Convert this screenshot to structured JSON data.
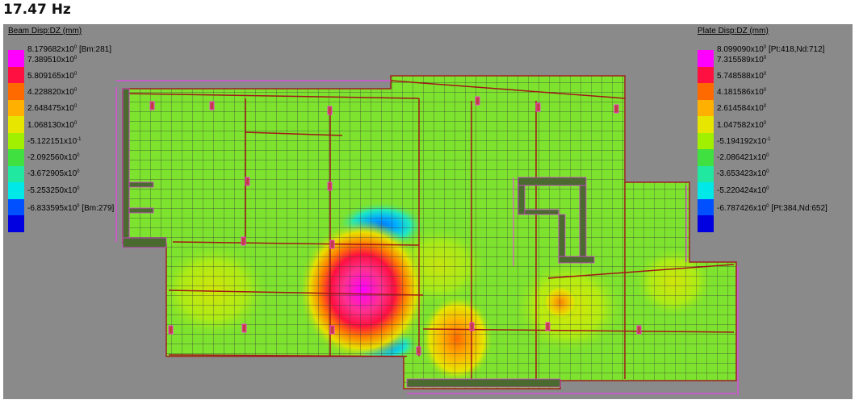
{
  "frequency_title": "17.47 Hz",
  "legend_colors": [
    "#ff00ff",
    "#ff40b0",
    "#ff1040",
    "#ff6a00",
    "#ffb000",
    "#e6e600",
    "#a0f000",
    "#40e040",
    "#20e8a0",
    "#00e8e8",
    "#00a8ff",
    "#0050ff",
    "#0000e0"
  ],
  "beam_legend": {
    "title": "Beam Disp:DZ  (mm)",
    "max_note": "[Bm:281]",
    "min_note": "[Bm:279]",
    "values": [
      "8.179682x10",
      "7.389510x10",
      "5.809165x10",
      "4.228820x10",
      "2.648475x10",
      "1.068130x10",
      "-5.122151x10",
      "-2.092560x10",
      "-3.672905x10",
      "-5.253250x10",
      "-6.833595x10"
    ],
    "exponents": [
      "0",
      "0",
      "0",
      "0",
      "0",
      "0",
      "-1",
      "0",
      "0",
      "0",
      "0"
    ]
  },
  "plate_legend": {
    "title": "Plate Disp:DZ  (mm)",
    "max_note": "[Pt:418,Nd:712]",
    "min_note": "[Pt:384,Nd:652]",
    "values": [
      "8.099090x10",
      "7.315589x10",
      "5.748588x10",
      "4.181586x10",
      "2.614584x10",
      "1.047582x10",
      "-5.194192x10",
      "-2.086421x10",
      "-3.653423x10",
      "-5.220424x10",
      "-6.787426x10"
    ],
    "exponents": [
      "0",
      "0",
      "0",
      "0",
      "0",
      "0",
      "-1",
      "0",
      "0",
      "0",
      "0"
    ]
  }
}
